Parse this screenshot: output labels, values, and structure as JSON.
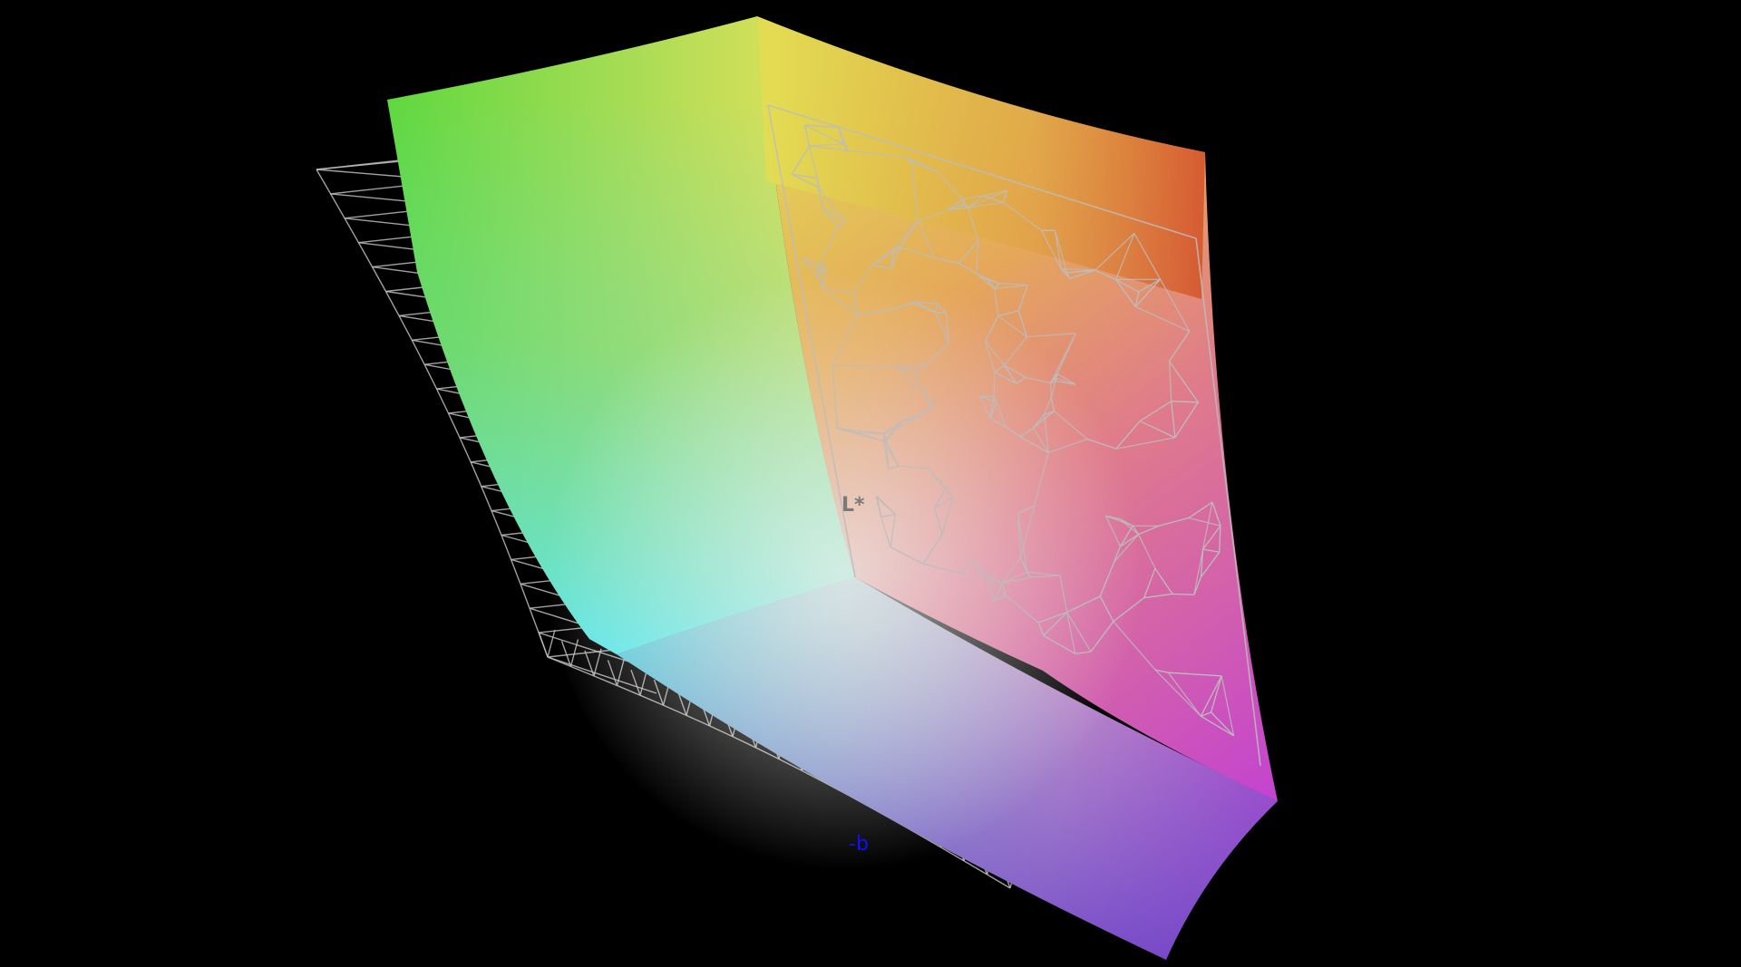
{
  "view": {
    "background": "#000000",
    "axis_labels": {
      "l_axis": "L*",
      "b_axis": "-b"
    },
    "colors": {
      "l_label": "#7a7a7a",
      "b_label": "#1010ff",
      "wireframe": "#bdbdbd"
    }
  }
}
